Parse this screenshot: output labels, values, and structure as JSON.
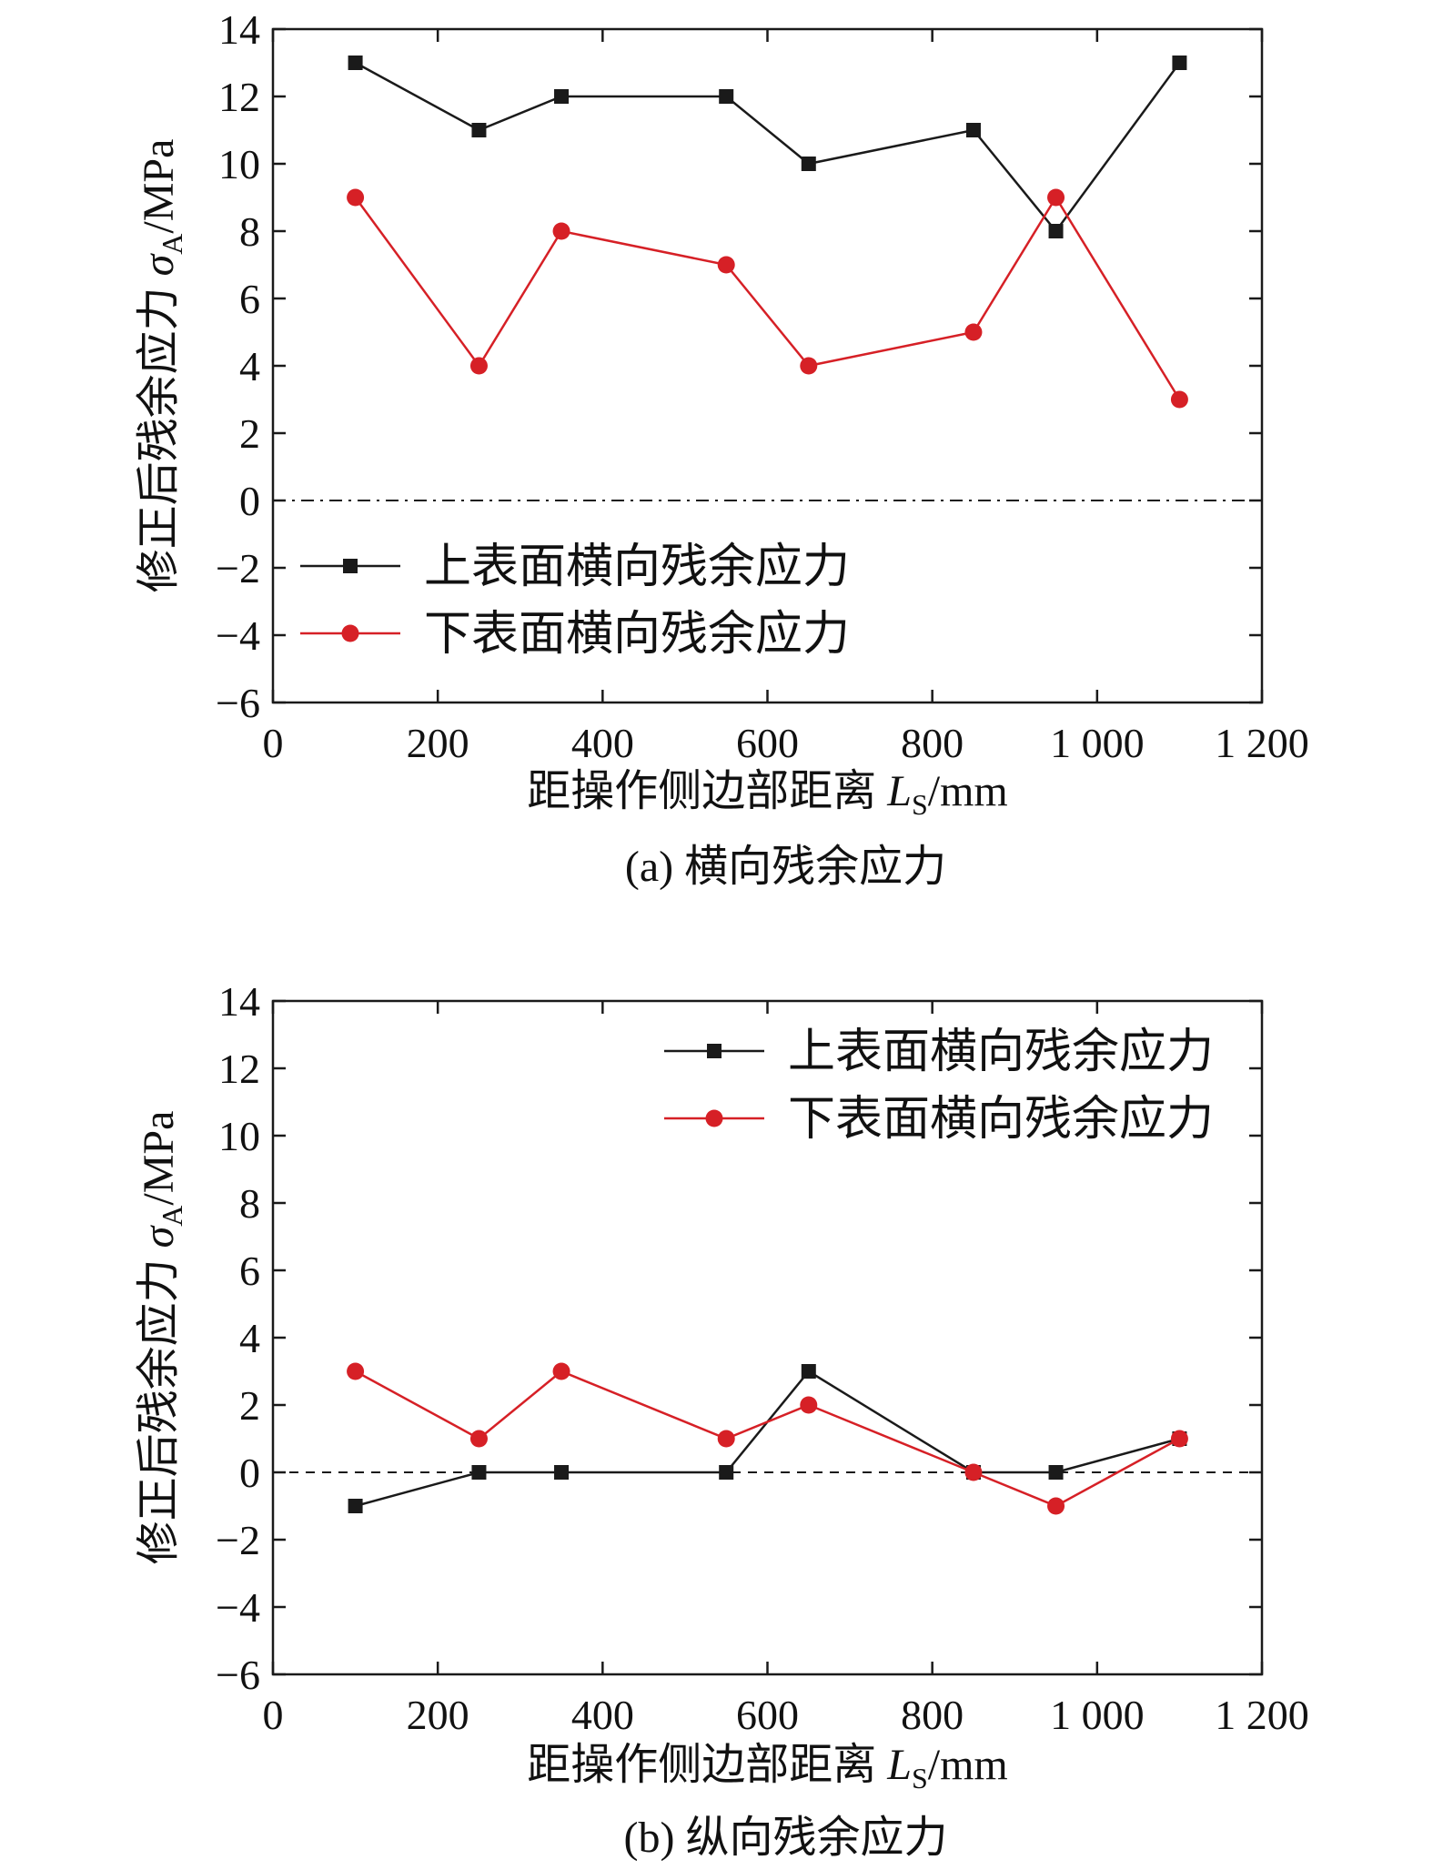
{
  "chart_data": [
    {
      "type": "line",
      "panel": "a",
      "caption": "(a) 横向残余应力",
      "xlabel_prefix": "距操作侧边部距离 ",
      "xlabel_var": "L",
      "xlabel_sub": "S",
      "xlabel_unit": "/mm",
      "ylabel_prefix": "修正后残余应力 ",
      "ylabel_var": "σ",
      "ylabel_sub": "A",
      "ylabel_unit": "/MPa",
      "xlim": [
        0,
        1200
      ],
      "ylim": [
        -6,
        14
      ],
      "xticks": [
        0,
        200,
        400,
        600,
        800,
        1000,
        1200
      ],
      "xtick_labels": [
        "0",
        "200",
        "400",
        "600",
        "800",
        "1 000",
        "1 200"
      ],
      "yticks": [
        -6,
        -4,
        -2,
        0,
        2,
        4,
        6,
        8,
        10,
        12,
        14
      ],
      "ytick_labels": [
        "−6",
        "−4",
        "−2",
        "0",
        "2",
        "4",
        "6",
        "8",
        "10",
        "12",
        "14"
      ],
      "zero_line": "dash-dot",
      "legend_position": "lower-left",
      "x": [
        100,
        250,
        350,
        550,
        650,
        850,
        950,
        1100
      ],
      "series": [
        {
          "name": "上表面横向残余应力",
          "color": "#1a1a1a",
          "marker": "square",
          "values": [
            13,
            11,
            12,
            12,
            10,
            11,
            8,
            13
          ]
        },
        {
          "name": "下表面横向残余应力",
          "color": "#d62026",
          "marker": "circle",
          "values": [
            9,
            4,
            8,
            7,
            4,
            5,
            9,
            3
          ]
        }
      ]
    },
    {
      "type": "line",
      "panel": "b",
      "caption": "(b) 纵向残余应力",
      "xlabel_prefix": "距操作侧边部距离 ",
      "xlabel_var": "L",
      "xlabel_sub": "S",
      "xlabel_unit": "/mm",
      "ylabel_prefix": "修正后残余应力 ",
      "ylabel_var": "σ",
      "ylabel_sub": "A",
      "ylabel_unit": "/MPa",
      "xlim": [
        0,
        1200
      ],
      "ylim": [
        -6,
        14
      ],
      "xticks": [
        0,
        200,
        400,
        600,
        800,
        1000,
        1200
      ],
      "xtick_labels": [
        "0",
        "200",
        "400",
        "600",
        "800",
        "1 000",
        "1 200"
      ],
      "yticks": [
        -6,
        -4,
        -2,
        0,
        2,
        4,
        6,
        8,
        10,
        12,
        14
      ],
      "ytick_labels": [
        "−6",
        "−4",
        "−2",
        "0",
        "2",
        "4",
        "6",
        "8",
        "10",
        "12",
        "14"
      ],
      "zero_line": "dashed",
      "legend_position": "top-right",
      "x": [
        100,
        250,
        350,
        550,
        650,
        850,
        950,
        1100
      ],
      "series": [
        {
          "name": "上表面横向残余应力",
          "color": "#1a1a1a",
          "marker": "square",
          "values": [
            -1,
            0,
            0,
            0,
            3,
            0,
            0,
            1
          ]
        },
        {
          "name": "下表面横向残余应力",
          "color": "#d62026",
          "marker": "circle",
          "values": [
            3,
            1,
            3,
            1,
            2,
            0,
            -1,
            1
          ]
        }
      ]
    }
  ]
}
